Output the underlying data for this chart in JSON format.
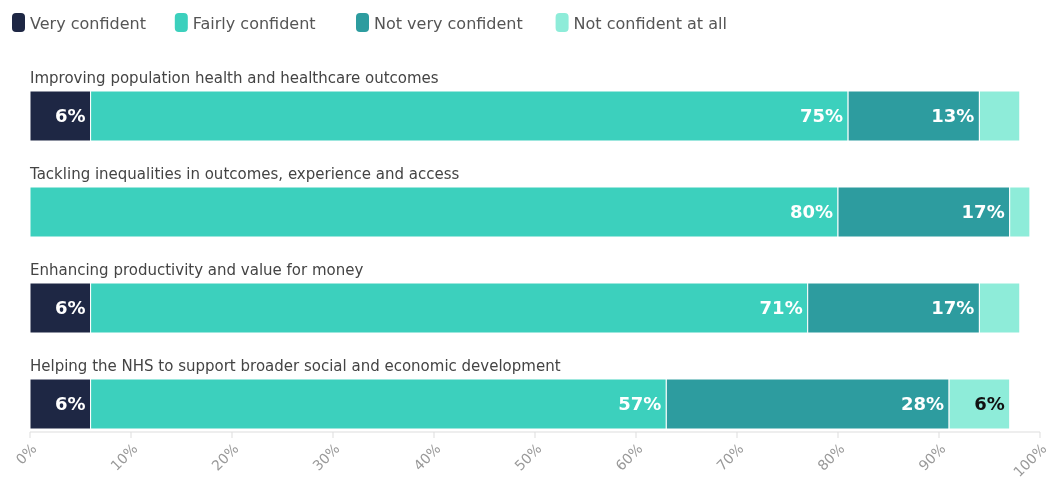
{
  "chart_data": {
    "type": "bar",
    "orientation": "horizontal",
    "stacked": true,
    "categories": [
      "Improving population health and healthcare outcomes",
      "Tackling inequalities in outcomes, experience and access",
      "Enhancing productivity and value for money",
      "Helping the NHS to support broader social and economic development"
    ],
    "series": [
      {
        "name": "Very confident",
        "color": "#1e2744",
        "values": [
          6,
          0,
          6,
          6
        ],
        "value_labels": [
          "6%",
          null,
          "6%",
          "6%"
        ]
      },
      {
        "name": "Fairly confident",
        "color": "#3cd0bd",
        "values": [
          75,
          80,
          71,
          57
        ],
        "value_labels": [
          "75%",
          "80%",
          "71%",
          "57%"
        ]
      },
      {
        "name": "Not very confident",
        "color": "#2d9c9f",
        "values": [
          13,
          17,
          17,
          28
        ],
        "value_labels": [
          "13%",
          "17%",
          "17%",
          "28%"
        ]
      },
      {
        "name": "Not confident at all",
        "color": "#8eecd9",
        "values": [
          4,
          2,
          4,
          6
        ],
        "value_labels": [
          null,
          null,
          null,
          "6%"
        ]
      }
    ],
    "xlim": [
      0,
      100
    ],
    "xticks": [
      {
        "value": 0,
        "label": "0%"
      },
      {
        "value": 10,
        "label": "10%"
      },
      {
        "value": 20,
        "label": "20%"
      },
      {
        "value": 30,
        "label": "30%"
      },
      {
        "value": 40,
        "label": "40%"
      },
      {
        "value": 50,
        "label": "50%"
      },
      {
        "value": 60,
        "label": "60%"
      },
      {
        "value": 70,
        "label": "70%"
      },
      {
        "value": 80,
        "label": "80%"
      },
      {
        "value": 90,
        "label": "90%"
      },
      {
        "value": 100,
        "label": "100%"
      }
    ],
    "legend": "top left",
    "grid": false
  }
}
